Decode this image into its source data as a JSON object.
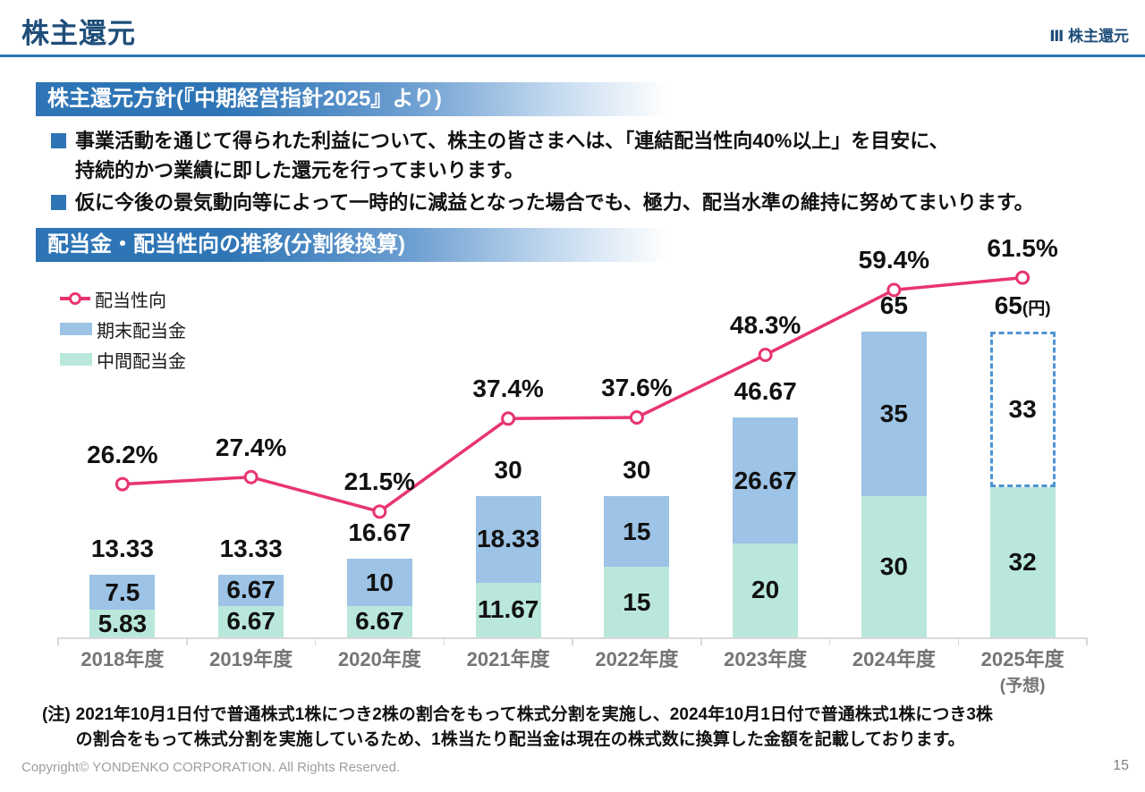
{
  "header": {
    "title": "株主還元",
    "corner_label": "Ⅲ 株主還元"
  },
  "policy_section": {
    "heading": "株主還元方針(『中期経営指針2025』より)",
    "bullets": [
      {
        "line1": "事業活動を通じて得られた利益について、株主の皆さまへは、「連結配当性向40%以上」を目安に、",
        "line2": "持続的かつ業績に即した還元を行ってまいります。"
      },
      {
        "line1": "仮に今後の景気動向等によって一時的に減益となった場合でも、極力、配当水準の維持に努めてまいります。"
      }
    ]
  },
  "chart_section": {
    "heading": "配当金・配当性向の推移(分割後換算)"
  },
  "colors": {
    "navy": "#1F4E79",
    "accent_blue": "#2E75B6",
    "bar_final_blue": "#9DC3E6",
    "bar_interim_teal": "#B9E7DB",
    "line_pink": "#E8356E",
    "forecast_border_blue": "#4E94D4",
    "axis_gray": "#D9D9D9",
    "axis_label_gray": "#757575"
  },
  "chart_data": {
    "type": "bar",
    "subtype": "stacked-bar-with-line",
    "categories": [
      "2018年度",
      "2019年度",
      "2020年度",
      "2021年度",
      "2022年度",
      "2023年度",
      "2024年度",
      "2025年度"
    ],
    "forecast_index": 7,
    "forecast_sublabel": "(予想)",
    "unit_label": "(円)",
    "bar_series": [
      {
        "name": "中間配当金",
        "color": "#B9E7DB",
        "values": [
          5.83,
          6.67,
          6.67,
          11.67,
          15,
          20,
          30,
          32
        ],
        "labels": [
          "5.83",
          "6.67",
          "6.67",
          "11.67",
          "15",
          "20",
          "30",
          "32"
        ]
      },
      {
        "name": "期末配当金",
        "color": "#9DC3E6",
        "values": [
          7.5,
          6.67,
          10,
          18.33,
          15,
          26.67,
          35,
          33
        ],
        "labels": [
          "7.5",
          "6.67",
          "10",
          "18.33",
          "15",
          "26.67",
          "35",
          "33"
        ]
      }
    ],
    "line_series": {
      "name": "配当性向",
      "color": "#E8356E",
      "values": [
        26.2,
        27.4,
        21.5,
        37.4,
        37.6,
        48.3,
        59.4,
        61.5
      ],
      "labels": [
        "26.2%",
        "27.4%",
        "21.5%",
        "37.4%",
        "37.6%",
        "48.3%",
        "59.4%",
        "61.5%"
      ]
    },
    "totals": {
      "values": [
        13.33,
        13.33,
        16.67,
        30,
        30,
        46.67,
        65,
        65
      ],
      "labels": [
        "13.33",
        "13.33",
        "16.67",
        "30",
        "30",
        "46.67",
        "65",
        "65"
      ]
    },
    "ylabel": "",
    "xlabel": "",
    "grid": false,
    "legend_position": "top-left"
  },
  "note": {
    "prefix": "(注)",
    "line1": "2021年10月1日付で普通株式1株につき2株の割合をもって株式分割を実施し、2024年10月1日付で普通株式1株につき3株",
    "line2": "の割合をもって株式分割を実施しているため、1株当たり配当金は現在の株式数に換算した金額を記載しております。"
  },
  "footer": {
    "copyright": "Copyright© YONDENKO CORPORATION. All Rights Reserved.",
    "page": "15"
  }
}
